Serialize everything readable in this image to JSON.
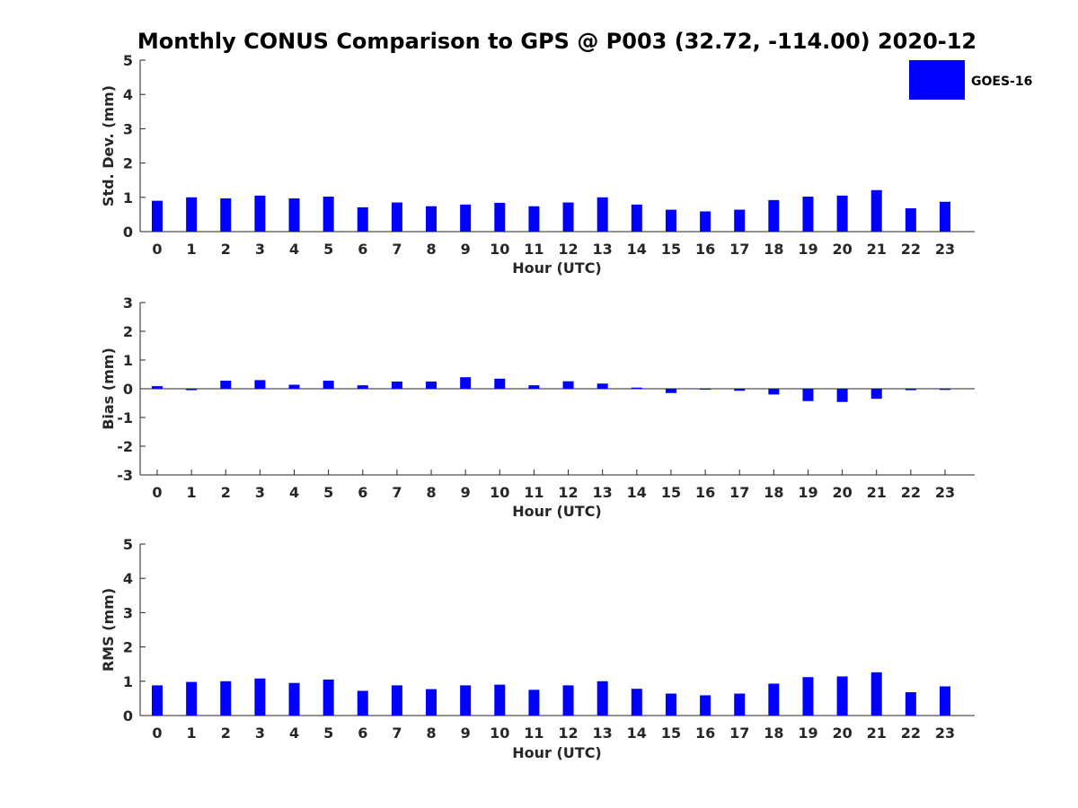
{
  "figure": {
    "title": "Monthly CONUS Comparison to GPS @ P003 (32.72, -114.00) 2020-12"
  },
  "legend": {
    "label": "GOES-16",
    "color": "#0000ff",
    "placement": "top-right"
  },
  "chart_data": [
    {
      "type": "bar",
      "ylabel": "Std. Dev. (mm)",
      "xlabel": "Hour (UTC)",
      "ylim": [
        0,
        5
      ],
      "yticks": [
        0,
        1,
        2,
        3,
        4,
        5
      ],
      "categories": [
        "0",
        "1",
        "2",
        "3",
        "4",
        "5",
        "6",
        "7",
        "8",
        "9",
        "10",
        "11",
        "12",
        "13",
        "14",
        "15",
        "16",
        "17",
        "18",
        "19",
        "20",
        "21",
        "22",
        "23"
      ],
      "series": [
        {
          "name": "GOES-16",
          "color": "#0000ff",
          "values": [
            0.9,
            1.0,
            0.97,
            1.05,
            0.97,
            1.02,
            0.71,
            0.85,
            0.74,
            0.79,
            0.84,
            0.74,
            0.85,
            1.0,
            0.79,
            0.64,
            0.59,
            0.64,
            0.92,
            1.02,
            1.05,
            1.21,
            0.68,
            0.87
          ]
        }
      ]
    },
    {
      "type": "bar",
      "ylabel": "Bias (mm)",
      "xlabel": "Hour (UTC)",
      "ylim": [
        -3,
        3
      ],
      "yticks": [
        -3,
        -2,
        -1,
        0,
        1,
        2,
        3
      ],
      "categories": [
        "0",
        "1",
        "2",
        "3",
        "4",
        "5",
        "6",
        "7",
        "8",
        "9",
        "10",
        "11",
        "12",
        "13",
        "14",
        "15",
        "16",
        "17",
        "18",
        "19",
        "20",
        "21",
        "22",
        "23"
      ],
      "series": [
        {
          "name": "GOES-16",
          "color": "#0000ff",
          "values": [
            0.09,
            -0.05,
            0.28,
            0.3,
            0.14,
            0.28,
            0.12,
            0.25,
            0.25,
            0.4,
            0.35,
            0.12,
            0.26,
            0.18,
            0.04,
            -0.15,
            -0.02,
            -0.07,
            -0.2,
            -0.43,
            -0.46,
            -0.35,
            -0.05,
            -0.04
          ]
        }
      ]
    },
    {
      "type": "bar",
      "ylabel": "RMS (mm)",
      "xlabel": "Hour (UTC)",
      "ylim": [
        0,
        5
      ],
      "yticks": [
        0,
        1,
        2,
        3,
        4,
        5
      ],
      "categories": [
        "0",
        "1",
        "2",
        "3",
        "4",
        "5",
        "6",
        "7",
        "8",
        "9",
        "10",
        "11",
        "12",
        "13",
        "14",
        "15",
        "16",
        "17",
        "18",
        "19",
        "20",
        "21",
        "22",
        "23"
      ],
      "series": [
        {
          "name": "GOES-16",
          "color": "#0000ff",
          "values": [
            0.88,
            0.98,
            1.0,
            1.08,
            0.95,
            1.05,
            0.72,
            0.88,
            0.77,
            0.88,
            0.9,
            0.75,
            0.88,
            1.0,
            0.78,
            0.64,
            0.59,
            0.64,
            0.93,
            1.12,
            1.14,
            1.26,
            0.68,
            0.85
          ]
        }
      ]
    }
  ]
}
